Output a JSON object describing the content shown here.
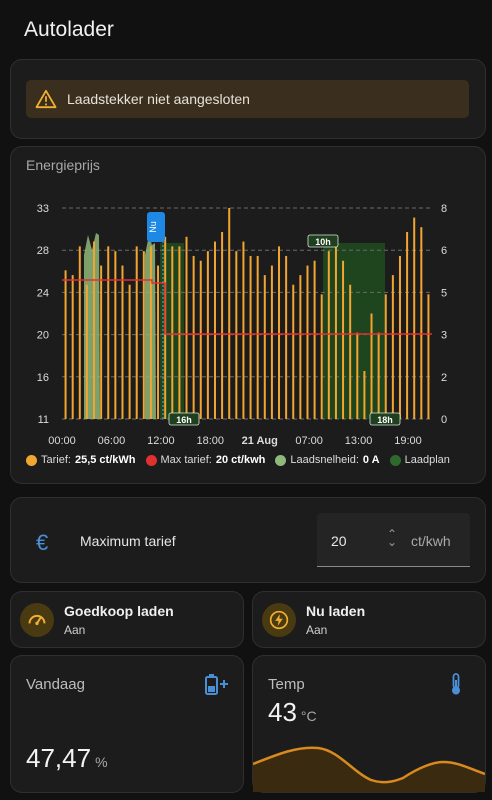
{
  "page": {
    "title": "Autolader"
  },
  "alert": {
    "icon": "warning-icon",
    "text": "Laadstekker niet aangesloten"
  },
  "chart": {
    "title": "Energieprijs",
    "annotations": {
      "now_label": "Nu",
      "window1": "16h",
      "window2": "10h",
      "window3": "18h"
    },
    "legend": [
      {
        "label": "Tarief:",
        "value": "25,5 ct/kWh",
        "color": "#f2a531"
      },
      {
        "label": "Max tarief:",
        "value": "20 ct/kwh",
        "color": "#e03030"
      },
      {
        "label": "Laadsnelheid:",
        "value": "0 A",
        "color": "#8fb87a"
      },
      {
        "label": "Laadplan",
        "value": "",
        "color": "#2e6a2e"
      }
    ]
  },
  "chart_data": {
    "type": "bar",
    "y_left": {
      "ticks": [
        11,
        16,
        20,
        24,
        28,
        33
      ],
      "min": 11,
      "max": 33
    },
    "y_right": {
      "ticks": [
        0,
        2,
        3,
        5,
        6,
        8
      ],
      "min": 0,
      "max": 8
    },
    "x_ticks": [
      "00:00",
      "06:00",
      "12:00",
      "18:00",
      "21 Aug",
      "07:00",
      "13:00",
      "19:00"
    ],
    "series": [
      {
        "name": "Tarief",
        "color": "#f2a531",
        "values": [
          26.5,
          26,
          29,
          25,
          29.5,
          27,
          29,
          28.5,
          27,
          25,
          29,
          28.5,
          29,
          27,
          30,
          29,
          29,
          30,
          28,
          27.5,
          28.5,
          29.5,
          30.5,
          33,
          28.5,
          29.5,
          28,
          28,
          26,
          27,
          29,
          28,
          25,
          26,
          27,
          27.5,
          24,
          28.5,
          29,
          27.5,
          25,
          20,
          16,
          22,
          20,
          24,
          26,
          28,
          30.5,
          32,
          31,
          24
        ]
      },
      {
        "name": "Max tarief",
        "color": "#e03030",
        "values": []
      },
      {
        "name": "Laadsnelheid",
        "color": "#8fb87a",
        "values": []
      },
      {
        "name": "Laadplan",
        "color": "#2e6a2e",
        "values": []
      }
    ]
  },
  "max_tarief": {
    "icon": "euro-icon",
    "label": "Maximum tarief",
    "value": "20",
    "unit": "ct/kwh"
  },
  "tiles": [
    {
      "icon": "speedometer-icon",
      "name": "Goedkoop laden",
      "state": "Aan"
    },
    {
      "icon": "flash-icon",
      "name": "Nu laden",
      "state": "Aan"
    }
  ],
  "sensors": [
    {
      "name": "Vandaag",
      "icon": "battery-charging-icon",
      "value": "47,47",
      "unit": "%"
    },
    {
      "name": "Temp",
      "icon": "thermometer-icon",
      "value": "43",
      "unit": "°C"
    }
  ]
}
